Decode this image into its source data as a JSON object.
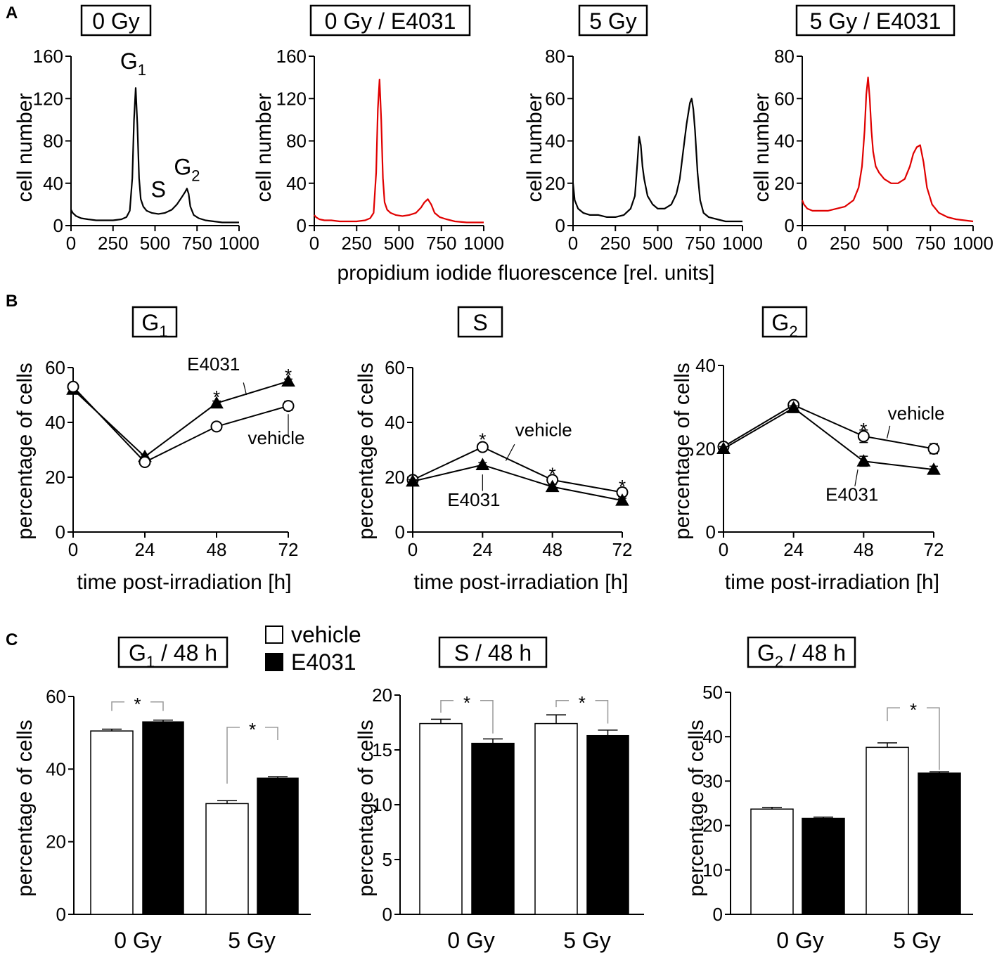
{
  "panel_labels": {
    "A": "A",
    "B": "B",
    "C": "C"
  },
  "shared_xlabel_A": "propidium iodide fluorescence [rel. units]",
  "legend_C": {
    "vehicle": "vehicle",
    "e4031": "E4031"
  },
  "chart_data": [
    {
      "id": "A1",
      "type": "line",
      "title": "0 Gy",
      "color": "#000000",
      "xlabel": "",
      "ylabel": "cell number",
      "xlim": [
        0,
        1000
      ],
      "ylim": [
        0,
        160
      ],
      "xticks": [
        0,
        250,
        500,
        750,
        1000
      ],
      "yticks": [
        0,
        40,
        80,
        120,
        160
      ],
      "xtick_labels": [
        "0",
        "250",
        "500",
        "750",
        "1000"
      ],
      "ytick_labels": [
        "0",
        "40",
        "80",
        "120",
        "160"
      ],
      "x": [
        0,
        10,
        30,
        60,
        100,
        150,
        200,
        250,
        300,
        330,
        350,
        365,
        375,
        385,
        395,
        405,
        415,
        430,
        450,
        480,
        520,
        560,
        600,
        630,
        660,
        680,
        690,
        700,
        710,
        730,
        760,
        800,
        850,
        900,
        950,
        1000
      ],
      "y": [
        15,
        12,
        9,
        7,
        6,
        5,
        5,
        5,
        6,
        8,
        14,
        45,
        100,
        130,
        95,
        45,
        25,
        18,
        14,
        12,
        11,
        12,
        15,
        20,
        27,
        32,
        35,
        30,
        18,
        10,
        7,
        5,
        4,
        3,
        3,
        3
      ],
      "annotations": [
        {
          "base": "G",
          "sub": "1",
          "x": 370,
          "y": 148
        },
        {
          "base": "S",
          "sub": "",
          "x": 520,
          "y": 27
        },
        {
          "base": "G",
          "sub": "2",
          "x": 690,
          "y": 48
        }
      ]
    },
    {
      "id": "A2",
      "type": "line",
      "title": "0 Gy / E4031",
      "color": "#e00000",
      "xlabel": "",
      "ylabel": "cell number",
      "xlim": [
        0,
        1000
      ],
      "ylim": [
        0,
        160
      ],
      "xticks": [
        0,
        250,
        500,
        750,
        1000
      ],
      "yticks": [
        0,
        40,
        80,
        120,
        160
      ],
      "xtick_labels": [
        "0",
        "250",
        "500",
        "750",
        "1000"
      ],
      "ytick_labels": [
        "0",
        "40",
        "80",
        "120",
        "160"
      ],
      "x": [
        0,
        10,
        30,
        60,
        100,
        150,
        200,
        250,
        300,
        330,
        350,
        365,
        375,
        385,
        395,
        405,
        415,
        430,
        450,
        480,
        520,
        560,
        600,
        630,
        650,
        670,
        690,
        710,
        740,
        780,
        830,
        900,
        1000
      ],
      "y": [
        10,
        8,
        6,
        5,
        5,
        4,
        4,
        4,
        5,
        7,
        12,
        50,
        110,
        138,
        100,
        45,
        22,
        15,
        12,
        10,
        9,
        10,
        12,
        17,
        22,
        25,
        20,
        12,
        8,
        6,
        4,
        3,
        3
      ]
    },
    {
      "id": "A3",
      "type": "line",
      "title": "5 Gy",
      "color": "#000000",
      "xlabel": "",
      "ylabel": "cell number",
      "xlim": [
        0,
        1000
      ],
      "ylim": [
        0,
        80
      ],
      "xticks": [
        0,
        250,
        500,
        750,
        1000
      ],
      "yticks": [
        0,
        20,
        40,
        60,
        80
      ],
      "xtick_labels": [
        "0",
        "250",
        "500",
        "750",
        "1000"
      ],
      "ytick_labels": [
        "0",
        "20",
        "40",
        "60",
        "80"
      ],
      "x": [
        0,
        10,
        30,
        60,
        100,
        150,
        200,
        250,
        300,
        340,
        365,
        380,
        390,
        400,
        410,
        420,
        440,
        470,
        500,
        540,
        580,
        610,
        630,
        650,
        670,
        690,
        700,
        710,
        720,
        735,
        750,
        770,
        800,
        850,
        900,
        1000
      ],
      "y": [
        20,
        12,
        8,
        6,
        5,
        5,
        4,
        4,
        5,
        8,
        14,
        30,
        42,
        38,
        28,
        22,
        14,
        10,
        8,
        8,
        10,
        15,
        22,
        35,
        48,
        58,
        60,
        55,
        45,
        25,
        12,
        6,
        4,
        3,
        2,
        2
      ]
    },
    {
      "id": "A4",
      "type": "line",
      "title": "5 Gy / E4031",
      "color": "#e00000",
      "xlabel": "",
      "ylabel": "cell number",
      "xlim": [
        0,
        1000
      ],
      "ylim": [
        0,
        80
      ],
      "xticks": [
        0,
        250,
        500,
        750,
        1000
      ],
      "yticks": [
        0,
        20,
        40,
        60,
        80
      ],
      "xtick_labels": [
        "0",
        "250",
        "500",
        "750",
        "1000"
      ],
      "ytick_labels": [
        "0",
        "20",
        "40",
        "60",
        "80"
      ],
      "x": [
        0,
        10,
        30,
        60,
        100,
        150,
        200,
        250,
        300,
        330,
        350,
        365,
        375,
        385,
        395,
        405,
        415,
        430,
        450,
        480,
        520,
        560,
        600,
        630,
        650,
        670,
        690,
        710,
        730,
        760,
        800,
        850,
        900,
        1000
      ],
      "y": [
        12,
        10,
        8,
        7,
        7,
        7,
        8,
        9,
        12,
        18,
        28,
        45,
        62,
        70,
        60,
        45,
        35,
        28,
        25,
        22,
        20,
        20,
        22,
        28,
        34,
        37,
        38,
        30,
        18,
        10,
        6,
        4,
        3,
        2
      ]
    },
    {
      "id": "B1",
      "type": "line",
      "title": "G",
      "title_sub": "1",
      "xlabel": "time post-irradiation [h]",
      "ylabel": "percentage of cells",
      "xlim": [
        0,
        72
      ],
      "ylim": [
        0,
        60
      ],
      "xticks": [
        0,
        24,
        48,
        72
      ],
      "yticks": [
        0,
        20,
        40,
        60
      ],
      "xtick_labels": [
        "0",
        "24",
        "48",
        "72"
      ],
      "ytick_labels": [
        "0",
        "20",
        "40",
        "60"
      ],
      "series": [
        {
          "name": "E4031",
          "marker": "triangle",
          "x": [
            0,
            24,
            48,
            72
          ],
          "y": [
            52,
            27.5,
            47,
            55
          ],
          "err": [
            0.8,
            0.8,
            0.8,
            0.8
          ]
        },
        {
          "name": "vehicle",
          "marker": "circle",
          "x": [
            0,
            24,
            48,
            72
          ],
          "y": [
            53,
            25.5,
            38.5,
            46
          ],
          "err": [
            0.8,
            0.8,
            1.2,
            1.6
          ]
        }
      ],
      "significance": [
        {
          "x": 48,
          "y": 50.5,
          "label": "*"
        },
        {
          "x": 72,
          "y": 58.5,
          "label": "*"
        }
      ],
      "labels": [
        {
          "text": "E4031",
          "x": 47,
          "y": 59,
          "lx1": 57,
          "ly1": 54.5,
          "lx2": 58,
          "ly2": 50
        },
        {
          "text": "vehicle",
          "x": 68,
          "y": 32,
          "lx1": 72,
          "ly1": 35,
          "lx2": 72,
          "ly2": 43
        }
      ]
    },
    {
      "id": "B2",
      "type": "line",
      "title": "S",
      "title_sub": "",
      "xlabel": "time post-irradiation [h]",
      "ylabel": "percentage of cells",
      "xlim": [
        0,
        72
      ],
      "ylim": [
        0,
        60
      ],
      "xticks": [
        0,
        24,
        48,
        72
      ],
      "yticks": [
        0,
        20,
        40,
        60
      ],
      "xtick_labels": [
        "0",
        "24",
        "48",
        "72"
      ],
      "ytick_labels": [
        "0",
        "20",
        "40",
        "60"
      ],
      "series": [
        {
          "name": "vehicle",
          "marker": "circle",
          "x": [
            0,
            24,
            48,
            72
          ],
          "y": [
            19,
            31,
            19,
            14.5
          ],
          "err": [
            0.6,
            0.8,
            1.0,
            1.5
          ]
        },
        {
          "name": "E4031",
          "marker": "triangle",
          "x": [
            0,
            24,
            48,
            72
          ],
          "y": [
            18.5,
            24.5,
            16.5,
            11.5
          ],
          "err": [
            0.6,
            0.8,
            0.8,
            0.8
          ]
        }
      ],
      "significance": [
        {
          "x": 24,
          "y": 35,
          "label": "*"
        },
        {
          "x": 48,
          "y": 22.5,
          "label": "*"
        },
        {
          "x": 72,
          "y": 18,
          "label": "*"
        }
      ],
      "labels": [
        {
          "text": "vehicle",
          "x": 45,
          "y": 35,
          "lx1": 35,
          "ly1": 32,
          "lx2": 32,
          "ly2": 26
        },
        {
          "text": "E4031",
          "x": 21,
          "y": 9.5,
          "lx1": 24,
          "ly1": 15,
          "lx2": 24,
          "ly2": 21
        }
      ]
    },
    {
      "id": "B3",
      "type": "line",
      "title": "G",
      "title_sub": "2",
      "xlabel": "time post-irradiation [h]",
      "ylabel": "percentage of cells",
      "xlim": [
        0,
        72
      ],
      "ylim": [
        0,
        40
      ],
      "xticks": [
        0,
        24,
        48,
        72
      ],
      "yticks": [
        0,
        20,
        40
      ],
      "xtick_labels": [
        "0",
        "24",
        "48",
        "72"
      ],
      "ytick_labels": [
        "0",
        "20",
        "40"
      ],
      "series": [
        {
          "name": "vehicle",
          "marker": "circle",
          "x": [
            0,
            24,
            48,
            72
          ],
          "y": [
            20.5,
            30.5,
            23,
            20
          ],
          "err": [
            0.5,
            0.5,
            1.5,
            1.2
          ]
        },
        {
          "name": "E4031",
          "marker": "triangle",
          "x": [
            0,
            24,
            48,
            72
          ],
          "y": [
            20,
            29.8,
            17,
            15
          ],
          "err": [
            0.5,
            0.5,
            1.2,
            0.8
          ]
        }
      ],
      "significance": [
        {
          "x": 48,
          "y": 25.5,
          "label": "*"
        }
      ],
      "labels": [
        {
          "text": "vehicle",
          "x": 66,
          "y": 27,
          "lx1": 57,
          "ly1": 25.5,
          "lx2": 56,
          "ly2": 22.5
        },
        {
          "text": "E4031",
          "x": 44,
          "y": 7.5,
          "lx1": 45,
          "ly1": 11,
          "lx2": 46,
          "ly2": 15
        }
      ]
    },
    {
      "id": "C1",
      "type": "bar",
      "title": "G",
      "title_sub": "1",
      "title_suffix": " / 48 h",
      "xlabel": "",
      "ylabel": "percentage of cells",
      "ylim": [
        0,
        60
      ],
      "yticks": [
        0,
        20,
        40,
        60
      ],
      "ytick_labels": [
        "0",
        "20",
        "40",
        "60"
      ],
      "categories": [
        "0 Gy",
        "5 Gy"
      ],
      "series": [
        {
          "name": "vehicle",
          "fill": "#ffffff",
          "values": [
            50.5,
            30.5
          ],
          "err": [
            0.5,
            0.8
          ]
        },
        {
          "name": "E4031",
          "fill": "#000000",
          "values": [
            53,
            37.5
          ],
          "err": [
            0.5,
            0.4
          ]
        }
      ],
      "significance": [
        {
          "group": 0,
          "h": 58.5,
          "s1": 56,
          "s2": 56,
          "label": "*"
        },
        {
          "group": 1,
          "h": 51.5,
          "s1": 36,
          "s2": 48,
          "label": "*"
        }
      ]
    },
    {
      "id": "C2",
      "type": "bar",
      "title": "S",
      "title_sub": "",
      "title_suffix": " / 48 h",
      "xlabel": "",
      "ylabel": "percentage of cells",
      "ylim": [
        0,
        20
      ],
      "yticks": [
        0,
        5,
        10,
        15,
        20
      ],
      "ytick_labels": [
        "0",
        "5",
        "10",
        "15",
        "20"
      ],
      "categories": [
        "0 Gy",
        "5 Gy"
      ],
      "series": [
        {
          "name": "vehicle",
          "fill": "#ffffff",
          "values": [
            17.4,
            17.4
          ],
          "err": [
            0.4,
            0.8
          ]
        },
        {
          "name": "E4031",
          "fill": "#000000",
          "values": [
            15.6,
            16.3
          ],
          "err": [
            0.4,
            0.5
          ]
        }
      ],
      "significance": [
        {
          "group": 0,
          "h": 19.5,
          "s1": 18.4,
          "s2": 16.5,
          "label": "*"
        },
        {
          "group": 1,
          "h": 19.5,
          "s1": 18.9,
          "s2": 17.4,
          "label": "*"
        }
      ]
    },
    {
      "id": "C3",
      "type": "bar",
      "title": "G",
      "title_sub": "2",
      "title_suffix": " / 48 h",
      "xlabel": "",
      "ylabel": "percentage of cells",
      "ylim": [
        0,
        50
      ],
      "yticks": [
        0,
        10,
        20,
        30,
        40,
        50
      ],
      "ytick_labels": [
        "0",
        "10",
        "20",
        "30",
        "40",
        "50"
      ],
      "categories": [
        "0 Gy",
        "5 Gy"
      ],
      "series": [
        {
          "name": "vehicle",
          "fill": "#ffffff",
          "values": [
            23.7,
            37.6
          ],
          "err": [
            0.4,
            1.0
          ]
        },
        {
          "name": "E4031",
          "fill": "#000000",
          "values": [
            21.6,
            31.8
          ],
          "err": [
            0.3,
            0.3
          ]
        }
      ],
      "significance": [
        {
          "group": 1,
          "h": 46.5,
          "s1": 43.5,
          "s2": 32.5,
          "label": "*"
        }
      ]
    }
  ]
}
